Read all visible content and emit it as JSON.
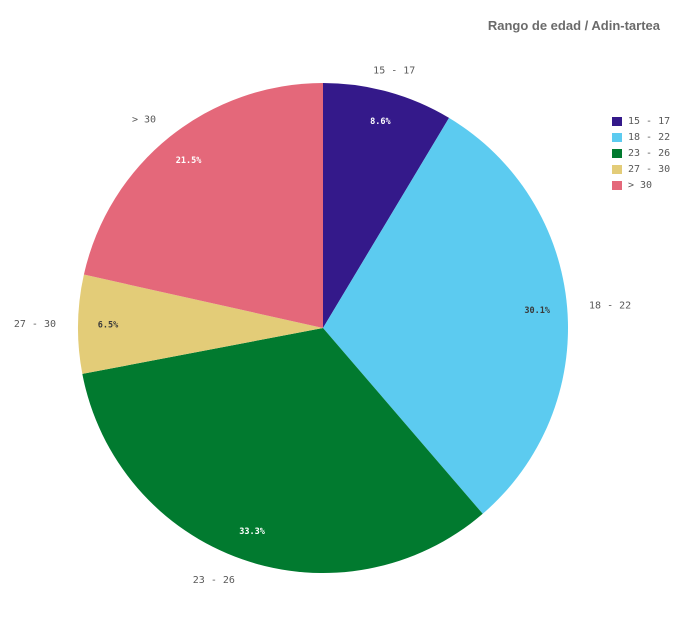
{
  "title": "Rango de edad / Adin-tartea",
  "chart_data": {
    "type": "pie",
    "title": "Rango de edad / Adin-tartea",
    "slices": [
      {
        "label": "15 - 17",
        "value": 8.6,
        "pct_text": "8.6%",
        "color": "#34198a"
      },
      {
        "label": "18 - 22",
        "value": 30.1,
        "pct_text": "30.1%",
        "color": "#5ccbf0"
      },
      {
        "label": "23 - 26",
        "value": 33.3,
        "pct_text": "33.3%",
        "color": "#017a2f"
      },
      {
        "label": "27 - 30",
        "value": 6.5,
        "pct_text": "6.5%",
        "color": "#e3cc78"
      },
      {
        "label": "> 30",
        "value": 21.5,
        "pct_text": "21.5%",
        "color": "#e4687a"
      }
    ],
    "legend_position": "right"
  }
}
